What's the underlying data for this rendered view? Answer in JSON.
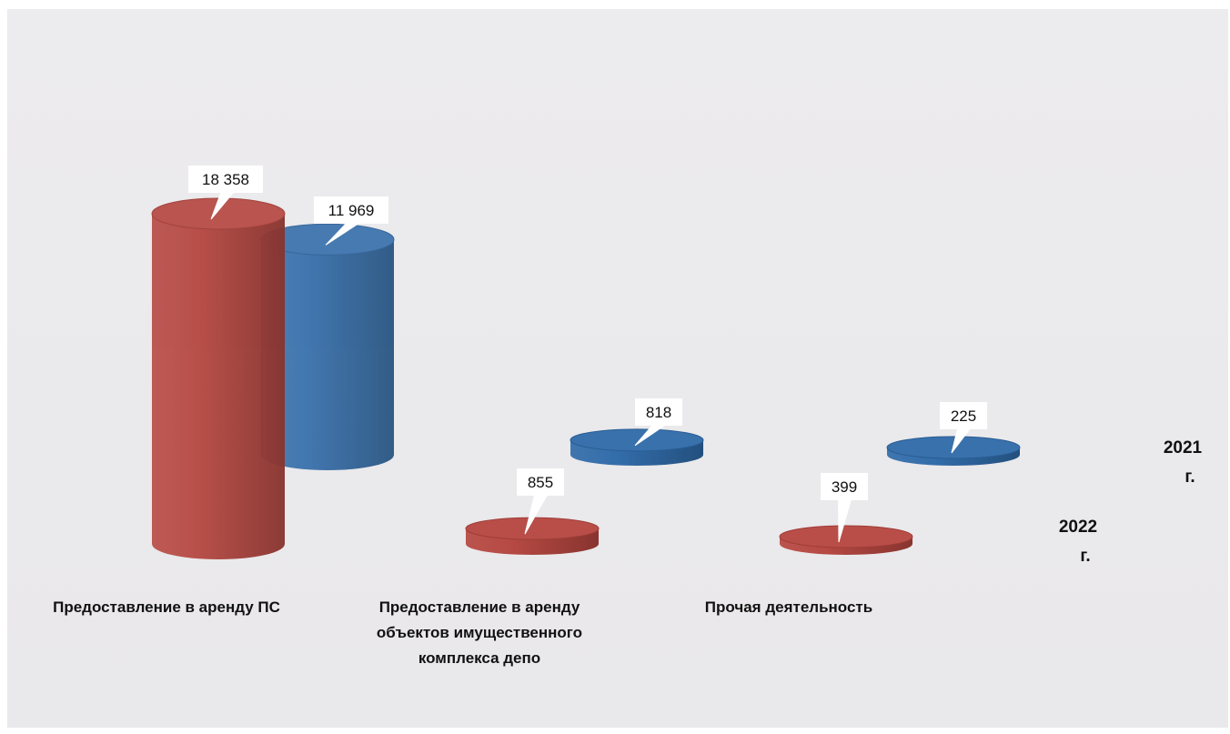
{
  "chart_data": {
    "type": "bar",
    "style": "3d-cylinder",
    "categories": [
      "Предоставление в аренду ПС",
      "Предоставление в аренду объектов имущественного комплекса депо",
      "Прочая деятельность"
    ],
    "category_label_lines": [
      [
        "Предоставление в аренду ПС"
      ],
      [
        "Предоставление в аренду",
        "объектов имущественного",
        "комплекса депо"
      ],
      [
        "Прочая деятельность"
      ]
    ],
    "series": [
      {
        "name": "2022 г.",
        "name_lines": [
          "2022",
          "г."
        ],
        "color": "#b5453f",
        "values": [
          18358,
          855,
          399
        ],
        "value_labels": [
          "18 358",
          "855",
          "399"
        ]
      },
      {
        "name": "2021 г.",
        "name_lines": [
          "2021",
          "г."
        ],
        "color": "#2f6aa8",
        "values": [
          11969,
          818,
          225
        ],
        "value_labels": [
          "11 969",
          "818",
          "225"
        ]
      }
    ],
    "ylim": [
      0,
      18358
    ],
    "grid": false,
    "legend": "none",
    "title": "",
    "xlabel": "",
    "ylabel": ""
  },
  "background_color": "#e9e8ea"
}
